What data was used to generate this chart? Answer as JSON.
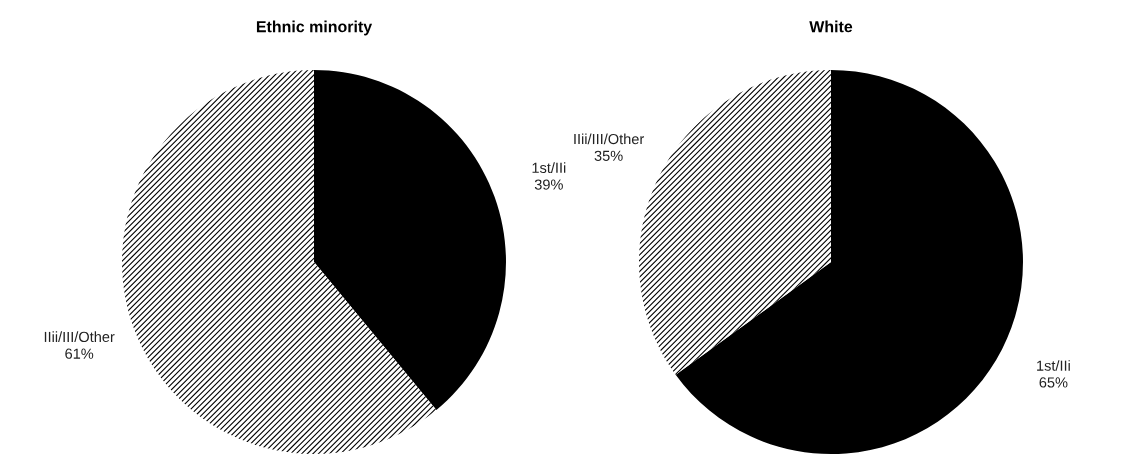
{
  "chart_data": [
    {
      "type": "pie",
      "title": "Ethnic minority",
      "categories": [
        "1st/IIi",
        "IIii/III/Other"
      ],
      "values": [
        39,
        61
      ],
      "colors": [
        "#000000",
        "#ffffff"
      ],
      "value_labels": [
        "39%",
        "61%"
      ]
    },
    {
      "type": "pie",
      "title": "White",
      "categories": [
        "1st/IIi",
        "IIii/III/Other"
      ],
      "values": [
        65,
        35
      ],
      "colors": [
        "#000000",
        "#ffffff"
      ],
      "value_labels": [
        "65%",
        "35%"
      ]
    }
  ]
}
